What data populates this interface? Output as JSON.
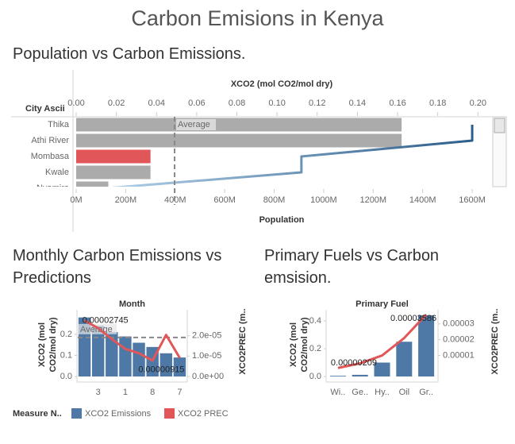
{
  "title": "Carbon Emisions in Kenya",
  "legend_title": "Measure N..",
  "chart_data": [
    {
      "type": "hbar",
      "title": "Population vs Carbon Emissions.",
      "row_header": "City Ascii",
      "xlabel": "XCO2 (mol CO2/mol dry)",
      "x2label": "Population",
      "categories": [
        "Thika",
        "Athi River",
        "Mombasa",
        "Kwale",
        "Nyamira"
      ],
      "values": [
        0.162,
        0.162,
        0.037,
        0.037,
        0.016
      ],
      "colors": [
        "#ababab",
        "#ababab",
        "#e15759",
        "#ababab",
        "#ababab"
      ],
      "line_values": [
        1600000000,
        1600000000,
        910000000,
        910000000,
        120000000
      ],
      "line_colors": [
        "#b3d1e8",
        "#2b5c8a"
      ],
      "average": 0.049,
      "average_label": "Average",
      "xlim": [
        0,
        0.207
      ],
      "xticks": [
        {
          "value": 0,
          "label": "0.00"
        },
        {
          "value": 0.02,
          "label": "0.02"
        },
        {
          "value": 0.04,
          "label": "0.04"
        },
        {
          "value": 0.06,
          "label": "0.06"
        },
        {
          "value": 0.08,
          "label": "0.08"
        },
        {
          "value": 0.1,
          "label": "0.10"
        },
        {
          "value": 0.12,
          "label": "0.12"
        },
        {
          "value": 0.14,
          "label": "0.14"
        },
        {
          "value": 0.16,
          "label": "0.16"
        },
        {
          "value": 0.18,
          "label": "0.18"
        },
        {
          "value": 0.2,
          "label": "0.20"
        }
      ],
      "x2lim": [
        0,
        1680000000
      ],
      "x2ticks": [
        {
          "value": 0,
          "label": "0M"
        },
        {
          "value": 200000000,
          "label": "200M"
        },
        {
          "value": 400000000,
          "label": "400M"
        },
        {
          "value": 600000000,
          "label": "600M"
        },
        {
          "value": 800000000,
          "label": "800M"
        },
        {
          "value": 1000000000,
          "label": "1000M"
        },
        {
          "value": 1200000000,
          "label": "1200M"
        },
        {
          "value": 1400000000,
          "label": "1400M"
        },
        {
          "value": 1600000000,
          "label": "1600M"
        }
      ]
    },
    {
      "type": "combo",
      "title": "Monthly Carbon Emissions vs Predictions",
      "header": "Month",
      "ylabel": "XCO2 (mol CO2/mol dry)",
      "y2label": "XCO2PREC (m..",
      "categories": [
        null,
        "3",
        null,
        "1",
        null,
        "8",
        null,
        "7"
      ],
      "series": [
        {
          "name": "XCO2 Emissions",
          "color": "#4e79a7",
          "values": [
            0.28,
            0.24,
            0.21,
            0.19,
            0.16,
            0.14,
            0.11,
            0.09
          ]
        },
        {
          "name": "XCO2 PREC",
          "color": "#e15759",
          "axis": "y2",
          "values": [
            2.745e-05,
            2.37e-05,
            1.84e-05,
            1.35e-05,
            1.14e-05,
            7.8e-06,
            2.04e-05,
            9.15e-06
          ],
          "value_labels": [
            "0.00002745",
            null,
            null,
            null,
            null,
            null,
            null,
            "0.00000915"
          ]
        }
      ],
      "average": 0.185,
      "average_label": "Average",
      "ylim": [
        0,
        0.29
      ],
      "yticks": [
        {
          "value": 0,
          "label": "0.0"
        },
        0.1,
        0.2
      ],
      "y2lim": [
        0,
        3e-05
      ],
      "y2ticks": [
        {
          "value": 0,
          "label": "0.0e+00"
        },
        {
          "value": 1e-05,
          "label": "1.0e-05"
        },
        {
          "value": 2e-05,
          "label": "2.0e-05"
        }
      ]
    },
    {
      "type": "combo",
      "title": "Primary Fuels vs Carbon emsision.",
      "header": "Primary Fuel",
      "ylabel": "XCO2 (mol CO2/mol dry)",
      "y2label": "XCO2PREC (m..",
      "categories": [
        "Wi..",
        "Ge..",
        "Hy..",
        "Oil",
        "Gr.."
      ],
      "series": [
        {
          "name": "XCO2 Emissions",
          "color": "#4e79a7",
          "values": [
            0.005,
            0.012,
            0.1,
            0.25,
            0.44
          ]
        },
        {
          "name": "XCO2 PREC",
          "color": "#e15759",
          "axis": "y2",
          "values": [
            2.09e-06,
            5e-06,
            1e-05,
            2.1e-05,
            3.586e-05
          ],
          "value_labels": [
            "0.00000209",
            null,
            null,
            null,
            "0.00003586"
          ]
        }
      ],
      "ylim": [
        0,
        0.44
      ],
      "yticks": [
        {
          "value": 0,
          "label": "0.0"
        },
        0.2,
        0.4
      ],
      "y2lim": [
        -3.3e-06,
        3.54e-05
      ],
      "y2ticks": [
        1e-05,
        2e-05,
        3e-05
      ]
    }
  ]
}
